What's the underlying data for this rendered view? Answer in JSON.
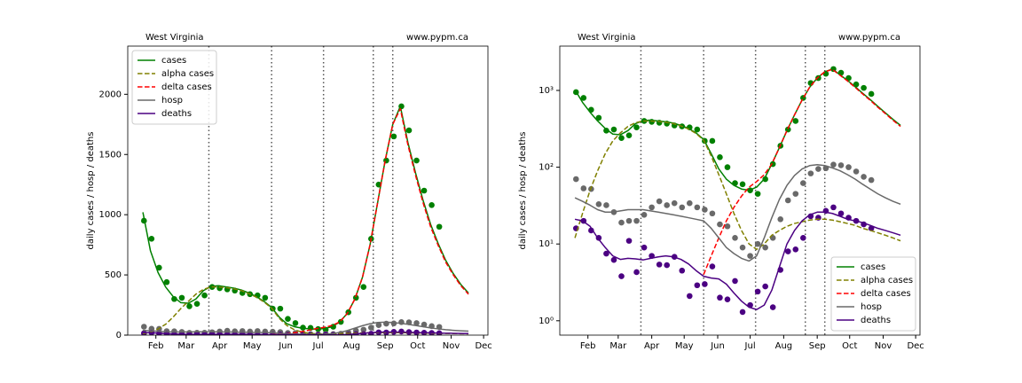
{
  "chart_data": [
    {
      "type": "line",
      "title": "West Virginia",
      "note": "www.pypm.ca",
      "ylabel": "daily cases / hosp / deaths",
      "x": [
        20,
        27,
        34,
        41,
        48,
        55,
        62,
        69,
        76,
        83,
        90,
        97,
        104,
        111,
        118,
        125,
        132,
        139,
        146,
        153,
        160,
        167,
        174,
        181,
        188,
        195,
        202,
        209,
        216,
        223,
        230,
        237,
        244,
        251,
        258,
        265,
        272,
        279,
        286,
        293,
        300,
        307,
        314,
        321
      ],
      "series": [
        {
          "name": "cases",
          "color": "#008000",
          "linestyle": "solid",
          "values": [
            1020,
            700,
            520,
            400,
            320,
            270,
            265,
            300,
            370,
            405,
            410,
            400,
            390,
            375,
            350,
            320,
            280,
            230,
            150,
            95,
            70,
            58,
            52,
            50,
            55,
            70,
            110,
            180,
            300,
            480,
            750,
            1100,
            1450,
            1750,
            1900,
            1600,
            1350,
            1120,
            920,
            760,
            620,
            510,
            420,
            350
          ]
        },
        {
          "name": "alpha cases",
          "color": "#808000",
          "linestyle": "dashed",
          "values": [
            12,
            25,
            50,
            90,
            150,
            220,
            280,
            340,
            380,
            400,
            400,
            395,
            385,
            370,
            345,
            315,
            275,
            225,
            140,
            80,
            45,
            25,
            15,
            10,
            8.5,
            10,
            13,
            15,
            17,
            18.5,
            19.5,
            20.5,
            21,
            21,
            20.5,
            19.5,
            18.5,
            17.5,
            16,
            15,
            14,
            13,
            12,
            11
          ]
        },
        {
          "name": "delta cases",
          "color": "#ff0000",
          "linestyle": "dashed",
          "values": [
            null,
            null,
            null,
            null,
            null,
            null,
            null,
            null,
            null,
            null,
            null,
            null,
            null,
            null,
            null,
            null,
            null,
            4,
            7,
            12,
            20,
            30,
            42,
            55,
            65,
            80,
            110,
            180,
            300,
            480,
            750,
            1100,
            1450,
            1750,
            1880,
            1580,
            1330,
            1100,
            900,
            745,
            605,
            500,
            410,
            340
          ]
        },
        {
          "name": "hosp",
          "color": "#696969",
          "linestyle": "solid",
          "values": [
            40,
            36,
            32,
            28,
            26,
            26,
            27,
            28,
            28,
            28,
            27,
            26,
            25,
            24,
            23,
            22,
            21,
            20,
            16,
            12,
            9,
            7.5,
            6.5,
            6,
            7,
            12,
            22,
            38,
            58,
            78,
            95,
            105,
            108,
            105,
            98,
            90,
            80,
            70,
            60,
            52,
            45,
            40,
            36,
            33
          ]
        },
        {
          "name": "deaths",
          "color": "#4b0082",
          "linestyle": "solid",
          "values": [
            21,
            20,
            17,
            12,
            9,
            7,
            6.3,
            6.5,
            6.4,
            6.2,
            6.5,
            6.8,
            7,
            6.8,
            6.3,
            5.5,
            4.5,
            3.8,
            3.6,
            3.5,
            3.0,
            2.3,
            1.8,
            1.5,
            1.4,
            1.6,
            2.5,
            5,
            10,
            15,
            20,
            24,
            26,
            26,
            25,
            23,
            21,
            20,
            19,
            17.5,
            16,
            15,
            14,
            13
          ]
        }
      ],
      "points_x": [
        21,
        28,
        35,
        42,
        49,
        56,
        63,
        70,
        77,
        84,
        91,
        98,
        105,
        112,
        119,
        126,
        133,
        140,
        147,
        154,
        161,
        168,
        175,
        182,
        189,
        196,
        203,
        210,
        217,
        224,
        231,
        238,
        245,
        252,
        259,
        266,
        273,
        280,
        287,
        294
      ],
      "points": [
        {
          "color": "#008000",
          "values": [
            950,
            800,
            560,
            440,
            300,
            310,
            240,
            260,
            330,
            400,
            390,
            380,
            370,
            350,
            340,
            330,
            310,
            220,
            220,
            135,
            100,
            62,
            60,
            50,
            45,
            70,
            110,
            190,
            310,
            400,
            800,
            1250,
            1450,
            1650,
            1900,
            1700,
            1450,
            1200,
            1080,
            900
          ]
        },
        {
          "color": "#696969",
          "values": [
            70,
            53,
            52,
            33,
            32,
            26,
            19,
            20,
            20,
            24,
            30,
            36,
            32,
            34,
            30,
            34,
            30,
            28,
            25,
            18,
            17,
            12,
            9,
            7,
            10,
            9,
            12,
            21,
            37,
            45,
            62,
            83,
            95,
            97,
            108,
            106,
            100,
            88,
            75,
            68
          ]
        },
        {
          "color": "#4b0082",
          "values": [
            16,
            20,
            15,
            12,
            7.5,
            6.2,
            3.8,
            11,
            4.3,
            9,
            7,
            5.4,
            5.3,
            6.8,
            4.5,
            2.1,
            2.9,
            3.0,
            5.1,
            2.0,
            1.9,
            3.3,
            1.3,
            1.6,
            2.4,
            2.8,
            1.5,
            4.6,
            8,
            8.5,
            12,
            23,
            22,
            27,
            30,
            25,
            22,
            20,
            18,
            16
          ]
        }
      ],
      "breakpoints": [
        81,
        139,
        187,
        233,
        251
      ],
      "xlim": [
        6,
        339
      ],
      "xticks": [
        {
          "value": 32,
          "label": "Feb"
        },
        {
          "value": 60,
          "label": "Mar"
        },
        {
          "value": 91,
          "label": "Apr"
        },
        {
          "value": 121,
          "label": "May"
        },
        {
          "value": 152,
          "label": "Jun"
        },
        {
          "value": 182,
          "label": "Jul"
        },
        {
          "value": 213,
          "label": "Aug"
        },
        {
          "value": 244,
          "label": "Sep"
        },
        {
          "value": 274,
          "label": "Oct"
        },
        {
          "value": 305,
          "label": "Nov"
        },
        {
          "value": 335,
          "label": "Dec"
        }
      ],
      "ylim": [
        0,
        2400
      ],
      "yticks": [
        0,
        500,
        1000,
        1500,
        2000
      ],
      "log_scale": false,
      "legend": "upper left"
    },
    {
      "type": "line",
      "title": "West Virginia",
      "note": "www.pypm.ca",
      "ylabel": "daily cases / hosp / deaths",
      "x": [
        20,
        27,
        34,
        41,
        48,
        55,
        62,
        69,
        76,
        83,
        90,
        97,
        104,
        111,
        118,
        125,
        132,
        139,
        146,
        153,
        160,
        167,
        174,
        181,
        188,
        195,
        202,
        209,
        216,
        223,
        230,
        237,
        244,
        251,
        258,
        265,
        272,
        279,
        286,
        293,
        300,
        307,
        314,
        321
      ],
      "series": [
        {
          "name": "cases",
          "color": "#008000",
          "linestyle": "solid",
          "values": [
            1020,
            700,
            520,
            400,
            320,
            270,
            265,
            300,
            370,
            405,
            410,
            400,
            390,
            375,
            350,
            320,
            280,
            230,
            150,
            95,
            70,
            58,
            52,
            50,
            55,
            70,
            110,
            180,
            300,
            480,
            750,
            1100,
            1450,
            1750,
            1900,
            1600,
            1350,
            1120,
            920,
            760,
            620,
            510,
            420,
            350
          ]
        },
        {
          "name": "alpha cases",
          "color": "#808000",
          "linestyle": "dashed",
          "values": [
            12,
            25,
            50,
            90,
            150,
            220,
            280,
            340,
            380,
            400,
            400,
            395,
            385,
            370,
            345,
            315,
            275,
            225,
            140,
            80,
            45,
            25,
            15,
            10,
            8.5,
            10,
            13,
            15,
            17,
            18.5,
            19.5,
            20.5,
            21,
            21,
            20.5,
            19.5,
            18.5,
            17.5,
            16,
            15,
            14,
            13,
            12,
            11
          ]
        },
        {
          "name": "delta cases",
          "color": "#ff0000",
          "linestyle": "dashed",
          "values": [
            null,
            null,
            null,
            null,
            null,
            null,
            null,
            null,
            null,
            null,
            null,
            null,
            null,
            null,
            null,
            null,
            null,
            4,
            7,
            12,
            20,
            30,
            42,
            55,
            65,
            80,
            110,
            180,
            300,
            480,
            750,
            1100,
            1450,
            1750,
            1880,
            1580,
            1330,
            1100,
            900,
            745,
            605,
            500,
            410,
            340
          ]
        },
        {
          "name": "hosp",
          "color": "#696969",
          "linestyle": "solid",
          "values": [
            40,
            36,
            32,
            28,
            26,
            26,
            27,
            28,
            28,
            28,
            27,
            26,
            25,
            24,
            23,
            22,
            21,
            20,
            16,
            12,
            9,
            7.5,
            6.5,
            6,
            7,
            12,
            22,
            38,
            58,
            78,
            95,
            105,
            108,
            105,
            98,
            90,
            80,
            70,
            60,
            52,
            45,
            40,
            36,
            33
          ]
        },
        {
          "name": "deaths",
          "color": "#4b0082",
          "linestyle": "solid",
          "values": [
            21,
            20,
            17,
            12,
            9,
            7,
            6.3,
            6.5,
            6.4,
            6.2,
            6.5,
            6.8,
            7,
            6.8,
            6.3,
            5.5,
            4.5,
            3.8,
            3.6,
            3.5,
            3.0,
            2.3,
            1.8,
            1.5,
            1.4,
            1.6,
            2.5,
            5,
            10,
            15,
            20,
            24,
            26,
            26,
            25,
            23,
            21,
            20,
            19,
            17.5,
            16,
            15,
            14,
            13
          ]
        }
      ],
      "points_x": [
        21,
        28,
        35,
        42,
        49,
        56,
        63,
        70,
        77,
        84,
        91,
        98,
        105,
        112,
        119,
        126,
        133,
        140,
        147,
        154,
        161,
        168,
        175,
        182,
        189,
        196,
        203,
        210,
        217,
        224,
        231,
        238,
        245,
        252,
        259,
        266,
        273,
        280,
        287,
        294
      ],
      "points": [
        {
          "color": "#008000",
          "values": [
            950,
            800,
            560,
            440,
            300,
            310,
            240,
            260,
            330,
            400,
            390,
            380,
            370,
            350,
            340,
            330,
            310,
            220,
            220,
            135,
            100,
            62,
            60,
            50,
            45,
            70,
            110,
            190,
            310,
            400,
            800,
            1250,
            1450,
            1650,
            1900,
            1700,
            1450,
            1200,
            1080,
            900
          ]
        },
        {
          "color": "#696969",
          "values": [
            70,
            53,
            52,
            33,
            32,
            26,
            19,
            20,
            20,
            24,
            30,
            36,
            32,
            34,
            30,
            34,
            30,
            28,
            25,
            18,
            17,
            12,
            9,
            7,
            10,
            9,
            12,
            21,
            37,
            45,
            62,
            83,
            95,
            97,
            108,
            106,
            100,
            88,
            75,
            68
          ]
        },
        {
          "color": "#4b0082",
          "values": [
            16,
            20,
            15,
            12,
            7.5,
            6.2,
            3.8,
            11,
            4.3,
            9,
            7,
            5.4,
            5.3,
            6.8,
            4.5,
            2.1,
            2.9,
            3.0,
            5.1,
            2.0,
            1.9,
            3.3,
            1.3,
            1.6,
            2.4,
            2.8,
            1.5,
            4.6,
            8,
            8.5,
            12,
            23,
            22,
            27,
            30,
            25,
            22,
            20,
            18,
            16
          ]
        }
      ],
      "breakpoints": [
        81,
        139,
        187,
        233,
        251
      ],
      "xlim": [
        6,
        339
      ],
      "xticks": [
        {
          "value": 32,
          "label": "Feb"
        },
        {
          "value": 60,
          "label": "Mar"
        },
        {
          "value": 91,
          "label": "Apr"
        },
        {
          "value": 121,
          "label": "May"
        },
        {
          "value": 152,
          "label": "Jun"
        },
        {
          "value": 182,
          "label": "Jul"
        },
        {
          "value": 213,
          "label": "Aug"
        },
        {
          "value": 244,
          "label": "Sep"
        },
        {
          "value": 274,
          "label": "Oct"
        },
        {
          "value": 305,
          "label": "Nov"
        },
        {
          "value": 335,
          "label": "Dec"
        }
      ],
      "ylim": [
        0.65,
        3780
      ],
      "yticks": [
        {
          "value": 1,
          "label": "10⁰"
        },
        {
          "value": 10,
          "label": "10¹"
        },
        {
          "value": 100,
          "label": "10²"
        },
        {
          "value": 1000,
          "label": "10³"
        }
      ],
      "log_scale": true,
      "legend": "lower right"
    }
  ]
}
